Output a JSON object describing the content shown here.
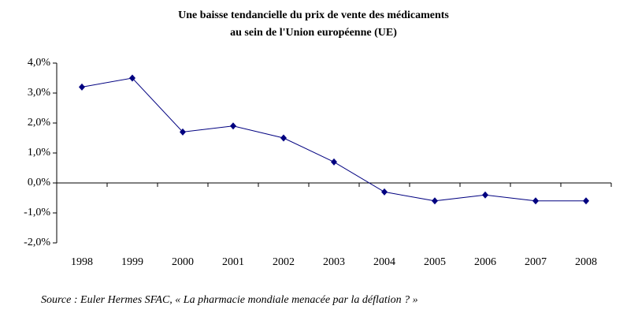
{
  "chart_data": {
    "type": "line",
    "title": [
      "Une baisse tendancielle du prix de vente des médicaments",
      "au sein de l'Union européenne (UE)"
    ],
    "categories": [
      "1998",
      "1999",
      "2000",
      "2001",
      "2002",
      "2003",
      "2004",
      "2005",
      "2006",
      "2007",
      "2008"
    ],
    "values": [
      3.2,
      3.5,
      1.7,
      1.9,
      1.5,
      0.7,
      -0.3,
      -0.6,
      -0.4,
      -0.6,
      -0.6
    ],
    "color": "#000080",
    "ylim": [
      -2,
      4
    ],
    "yticks": [
      {
        "value": 4,
        "label": "4,0%"
      },
      {
        "value": 3,
        "label": "3,0%"
      },
      {
        "value": 2,
        "label": "2,0%"
      },
      {
        "value": 1,
        "label": "1,0%"
      },
      {
        "value": 0,
        "label": "0,0%"
      },
      {
        "value": -1,
        "label": "-1,0%"
      },
      {
        "value": -2,
        "label": "-2,0%"
      }
    ],
    "source": "Source : Euler Hermes SFAC, « La pharmacie mondiale menacée par la déflation ? »"
  }
}
